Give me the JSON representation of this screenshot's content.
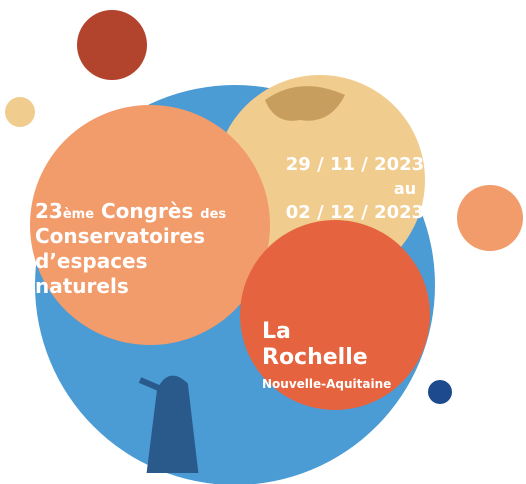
{
  "event": {
    "number": "23",
    "suffix": "ème",
    "word": "Congrès",
    "tail": "des",
    "lines": [
      "Conservatoires",
      "d’espaces",
      "naturels"
    ]
  },
  "dates": {
    "start": "29 / 11 / 2023",
    "connector": "au",
    "end": "02 / 12 / 2023"
  },
  "location": {
    "city_lines": [
      "La",
      "Rochelle"
    ],
    "region": "Nouvelle-Aquitaine"
  }
}
